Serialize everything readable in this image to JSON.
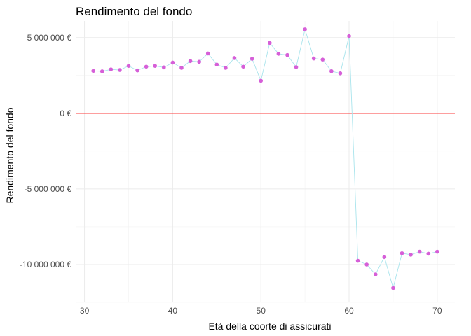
{
  "chart_data": {
    "type": "line",
    "title": "Rendimento del fondo",
    "xlabel": "Età della coorte di assicurati",
    "ylabel": "Rendimento del fondo",
    "xlim": [
      29.0,
      72.0
    ],
    "ylim": [
      -12500000,
      6100000
    ],
    "x_ticks": [
      30,
      40,
      50,
      60,
      70
    ],
    "x_tick_labels": [
      "30",
      "40",
      "50",
      "60",
      "70"
    ],
    "y_ticks": [
      -10000000,
      -5000000,
      0,
      5000000
    ],
    "y_tick_labels": [
      "-10 000 000 €",
      "-5 000 000 €",
      "0 €",
      "5 000 000 €"
    ],
    "grid": true,
    "reference_line": {
      "y": 0,
      "color": "#ff0000"
    },
    "line_color": "#a8e4ec",
    "point_color": "#d65fd8",
    "points": [
      {
        "x": 31,
        "y": 2800000
      },
      {
        "x": 32,
        "y": 2770000
      },
      {
        "x": 33,
        "y": 2900000
      },
      {
        "x": 34,
        "y": 2860000
      },
      {
        "x": 35,
        "y": 3130000
      },
      {
        "x": 36,
        "y": 2830000
      },
      {
        "x": 37,
        "y": 3080000
      },
      {
        "x": 38,
        "y": 3130000
      },
      {
        "x": 39,
        "y": 3030000
      },
      {
        "x": 40,
        "y": 3350000
      },
      {
        "x": 41,
        "y": 3000000
      },
      {
        "x": 42,
        "y": 3450000
      },
      {
        "x": 43,
        "y": 3400000
      },
      {
        "x": 44,
        "y": 3950000
      },
      {
        "x": 45,
        "y": 3220000
      },
      {
        "x": 46,
        "y": 3000000
      },
      {
        "x": 47,
        "y": 3650000
      },
      {
        "x": 48,
        "y": 3080000
      },
      {
        "x": 49,
        "y": 3600000
      },
      {
        "x": 50,
        "y": 2150000
      },
      {
        "x": 51,
        "y": 4650000
      },
      {
        "x": 52,
        "y": 3930000
      },
      {
        "x": 53,
        "y": 3850000
      },
      {
        "x": 54,
        "y": 3050000
      },
      {
        "x": 55,
        "y": 5550000
      },
      {
        "x": 56,
        "y": 3620000
      },
      {
        "x": 57,
        "y": 3550000
      },
      {
        "x": 58,
        "y": 2780000
      },
      {
        "x": 59,
        "y": 2640000
      },
      {
        "x": 60,
        "y": 5100000
      },
      {
        "x": 61,
        "y": -9750000
      },
      {
        "x": 62,
        "y": -10000000
      },
      {
        "x": 63,
        "y": -10650000
      },
      {
        "x": 64,
        "y": -9500000
      },
      {
        "x": 65,
        "y": -11550000
      },
      {
        "x": 66,
        "y": -9250000
      },
      {
        "x": 67,
        "y": -9350000
      },
      {
        "x": 68,
        "y": -9150000
      },
      {
        "x": 69,
        "y": -9280000
      },
      {
        "x": 70,
        "y": -9150000
      }
    ]
  }
}
